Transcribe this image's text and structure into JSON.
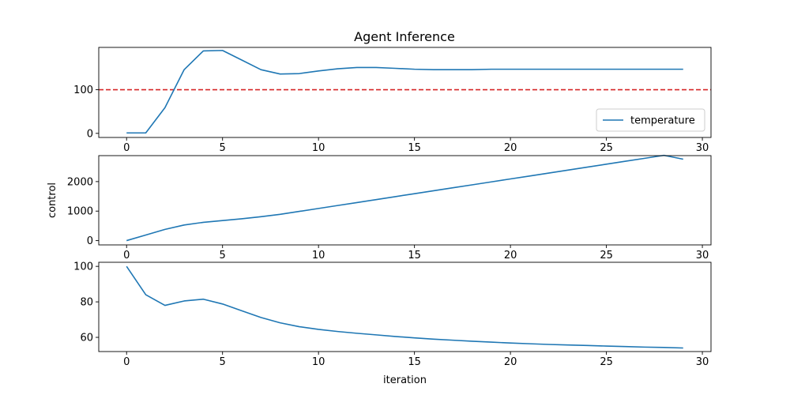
{
  "figure_title": "Agent Inference",
  "chart_data": [
    {
      "type": "line",
      "title": "Agent Inference",
      "xlabel": "",
      "ylabel": "",
      "xlim": [
        -1.45,
        30.45
      ],
      "ylim": [
        -9.4,
        197
      ],
      "xticks": [
        0,
        5,
        10,
        15,
        20,
        25,
        30
      ],
      "yticks": [
        0,
        100
      ],
      "grid": false,
      "legend": "lower-right",
      "series": [
        {
          "name": "temperature",
          "color": "#1f77b4",
          "x": [
            0,
            1,
            2,
            3,
            4,
            5,
            6,
            7,
            8,
            9,
            10,
            11,
            12,
            13,
            14,
            15,
            16,
            17,
            18,
            19,
            20,
            21,
            22,
            23,
            24,
            25,
            26,
            27,
            28,
            29
          ],
          "y": [
            1,
            1,
            59,
            146,
            189,
            190,
            168,
            146,
            136,
            137,
            143,
            148,
            151,
            151,
            149,
            147,
            146,
            146,
            146,
            147,
            147,
            147,
            147,
            147,
            147,
            147,
            147,
            147,
            147,
            147
          ]
        }
      ],
      "reference_lines": [
        {
          "axis": "y",
          "value": 100,
          "color": "#d62728",
          "style": "dashed"
        }
      ]
    },
    {
      "type": "line",
      "title": "",
      "xlabel": "",
      "ylabel": "control",
      "xlim": [
        -1.45,
        30.45
      ],
      "ylim": [
        -145,
        2880
      ],
      "xticks": [
        0,
        5,
        10,
        15,
        20,
        25,
        30
      ],
      "yticks": [
        0,
        1000,
        2000
      ],
      "grid": false,
      "series": [
        {
          "color": "#1f77b4",
          "x": [
            0,
            1,
            2,
            3,
            4,
            5,
            6,
            7,
            8,
            9,
            10,
            11,
            12,
            13,
            14,
            15,
            16,
            17,
            18,
            19,
            20,
            21,
            22,
            23,
            24,
            25,
            26,
            27,
            28,
            29
          ],
          "y": [
            0,
            190,
            380,
            530,
            620,
            680,
            740,
            810,
            890,
            990,
            1090,
            1190,
            1290,
            1390,
            1490,
            1590,
            1690,
            1790,
            1890,
            1990,
            2090,
            2190,
            2290,
            2390,
            2490,
            2590,
            2690,
            2790,
            2890,
            2760
          ]
        }
      ]
    },
    {
      "type": "line",
      "title": "",
      "xlabel": "iteration",
      "ylabel": "",
      "xlim": [
        -1.45,
        30.45
      ],
      "ylim": [
        52,
        102.3
      ],
      "xticks": [
        0,
        5,
        10,
        15,
        20,
        25,
        30
      ],
      "yticks": [
        60,
        80,
        100
      ],
      "grid": false,
      "series": [
        {
          "color": "#1f77b4",
          "x": [
            0,
            1,
            2,
            3,
            4,
            5,
            6,
            7,
            8,
            9,
            10,
            11,
            12,
            13,
            14,
            15,
            16,
            17,
            18,
            19,
            20,
            21,
            22,
            23,
            24,
            25,
            26,
            27,
            28,
            29
          ],
          "y": [
            100,
            84,
            78,
            80.5,
            81.5,
            78.8,
            75,
            71.2,
            68.2,
            66,
            64.5,
            63.3,
            62.3,
            61.4,
            60.5,
            59.7,
            59,
            58.4,
            57.8,
            57.3,
            56.8,
            56.4,
            56,
            55.7,
            55.4,
            55.1,
            54.8,
            54.5,
            54.3,
            54
          ]
        }
      ]
    }
  ]
}
